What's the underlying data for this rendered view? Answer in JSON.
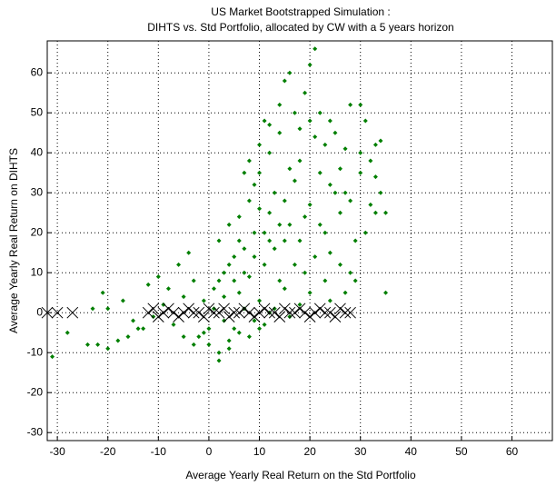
{
  "chart_data": {
    "type": "scatter",
    "title": "US Market Bootstrapped Simulation :",
    "subtitle": "DIHTS vs. Std Portfolio, allocated by CW with a 5 years horizon",
    "x_label": "Average Yearly Real Return on the Std Portfolio",
    "y_label": "Average Yearly Real Return on DIHTS",
    "xlim": [
      -32,
      68
    ],
    "ylim": [
      -32,
      68
    ],
    "xticks": [
      -30,
      -20,
      -10,
      0,
      10,
      20,
      30,
      40,
      50,
      60
    ],
    "yticks": [
      -30,
      -20,
      -10,
      0,
      10,
      20,
      30,
      40,
      50,
      60
    ],
    "grid": true,
    "series": [
      {
        "color": "#007f00",
        "marker": "diamond",
        "x": [
          -22,
          -20,
          -18,
          -16,
          -14,
          -21,
          -17,
          -15,
          -12,
          -10,
          -8,
          -13,
          -11,
          -9,
          -7,
          -5,
          -3,
          -6,
          -4,
          -2,
          0,
          2,
          4,
          -1,
          1,
          3,
          5,
          2,
          4,
          6,
          8,
          7,
          9,
          10,
          11,
          12,
          13,
          8,
          6,
          10,
          12,
          14,
          15,
          16,
          17,
          18,
          19,
          20,
          21,
          22,
          23,
          24,
          25,
          26,
          27,
          28,
          30,
          32,
          33,
          34,
          31,
          29,
          27,
          24,
          20,
          18,
          16,
          14,
          13,
          11,
          9,
          7,
          5,
          3,
          1,
          15,
          16,
          20,
          21,
          19,
          17,
          14,
          12,
          10,
          8,
          11,
          9,
          7,
          15,
          16,
          18,
          20,
          22,
          23,
          24,
          25,
          26,
          28,
          30,
          33,
          35,
          34,
          32,
          29,
          26,
          23,
          21,
          19,
          17,
          15,
          13,
          11,
          9,
          7,
          5,
          3,
          6,
          4,
          8,
          10,
          12,
          -1,
          -3,
          -5,
          2,
          0,
          -24,
          -28,
          -31,
          -23,
          -20,
          22,
          24,
          18,
          14,
          12,
          10,
          6,
          4,
          2,
          27,
          31,
          30,
          35,
          33,
          28
        ],
        "values": [
          -8,
          -9,
          -7,
          -6,
          -4,
          5,
          3,
          -2,
          7,
          9,
          6,
          -4,
          -1,
          2,
          -3,
          4,
          8,
          12,
          15,
          -6,
          -8,
          -10,
          -7,
          3,
          6,
          10,
          14,
          18,
          22,
          5,
          9,
          16,
          20,
          3,
          12,
          25,
          30,
          28,
          24,
          35,
          40,
          45,
          18,
          22,
          33,
          38,
          10,
          27,
          44,
          50,
          20,
          15,
          30,
          36,
          41,
          52,
          40,
          38,
          42,
          43,
          20,
          8,
          5,
          3,
          5,
          2,
          -1,
          8,
          1,
          -3,
          -2,
          1,
          -4,
          -2,
          1,
          58,
          60,
          62,
          66,
          55,
          50,
          52,
          47,
          42,
          38,
          48,
          32,
          35,
          28,
          36,
          46,
          48,
          35,
          42,
          48,
          45,
          25,
          28,
          35,
          34,
          25,
          30,
          27,
          18,
          12,
          8,
          14,
          24,
          12,
          6,
          16,
          20,
          14,
          10,
          8,
          4,
          -5,
          -9,
          -6,
          -4,
          0,
          -5,
          -8,
          -6,
          -12,
          -4,
          -8,
          -5,
          -11,
          1,
          1,
          22,
          32,
          18,
          22,
          18,
          26,
          18,
          12,
          8,
          30,
          48,
          52,
          5,
          25,
          10
        ]
      },
      {
        "color": "#000000",
        "marker": "x",
        "x": [
          -32,
          -30,
          -27,
          -12,
          -11,
          -10,
          -9,
          -8,
          -7,
          -6,
          -5,
          -4,
          -3,
          -2,
          -1,
          0,
          1,
          2,
          3,
          4,
          5,
          6,
          7,
          8,
          9,
          10,
          11,
          12,
          13,
          14,
          15,
          16,
          17,
          18,
          19,
          20,
          21,
          22,
          23,
          24,
          25,
          26,
          27,
          28
        ],
        "values": [
          0,
          0,
          0,
          0,
          1,
          -1,
          0,
          1,
          0,
          -1,
          0,
          1,
          0,
          0,
          -1,
          1,
          0,
          0,
          1,
          -1,
          0,
          0,
          1,
          0,
          -1,
          0,
          1,
          0,
          0,
          -1,
          1,
          0,
          0,
          1,
          0,
          -1,
          0,
          1,
          0,
          0,
          -1,
          1,
          0,
          0
        ]
      }
    ]
  }
}
